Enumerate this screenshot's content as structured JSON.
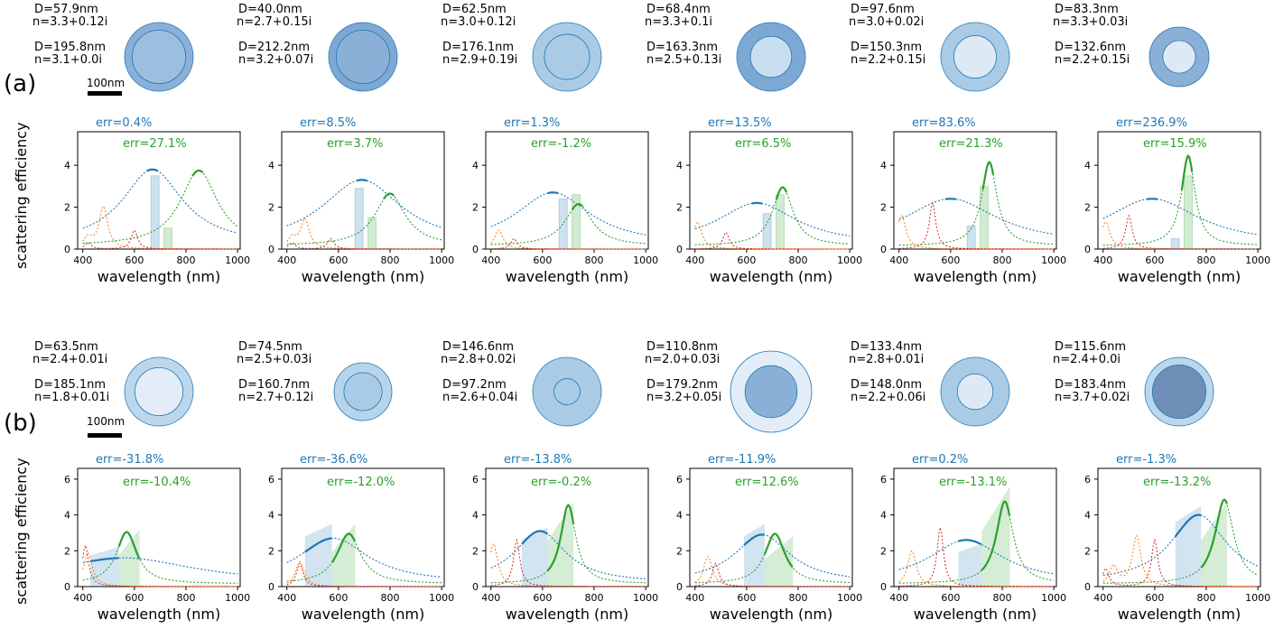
{
  "scale_bar_label": "100nm",
  "ylabel": "scattering efficiency",
  "xlabel": "wavelength (nm)",
  "x_ticks": [
    "400",
    "600",
    "800",
    "1000"
  ],
  "y_ticks": [
    "0",
    "2",
    "4",
    "6"
  ],
  "colors": {
    "blue": "#1f77b4",
    "green": "#2ca02c",
    "orange": "#ff7f0e",
    "red": "#d62728",
    "core_fill": "#9dbfdf",
    "shell_fill": "#bcd6ec"
  },
  "rows": [
    {
      "label": "(a)",
      "particles": [
        {
          "shell_d": "D=57.9nm",
          "shell_n": "n=3.3+0.12i",
          "core_d": "D=195.8nm",
          "core_n": "n=3.1+0.0i",
          "err_blue": "err=0.4%",
          "err_green": "err=27.1%"
        },
        {
          "shell_d": "D=40.0nm",
          "shell_n": "n=2.7+0.15i",
          "core_d": "D=212.2nm",
          "core_n": "n=3.2+0.07i",
          "err_blue": "err=8.5%",
          "err_green": "err=3.7%"
        },
        {
          "shell_d": "D=62.5nm",
          "shell_n": "n=3.0+0.12i",
          "core_d": "D=176.1nm",
          "core_n": "n=2.9+0.19i",
          "err_blue": "err=1.3%",
          "err_green": "err=-1.2%"
        },
        {
          "shell_d": "D=68.4nm",
          "shell_n": "n=3.3+0.1i",
          "core_d": "D=163.3nm",
          "core_n": "n=2.5+0.13i",
          "err_blue": "err=13.5%",
          "err_green": "err=6.5%"
        },
        {
          "shell_d": "D=97.6nm",
          "shell_n": "n=3.0+0.02i",
          "core_d": "D=150.3nm",
          "core_n": "n=2.2+0.15i",
          "err_blue": "err=83.6%",
          "err_green": "err=21.3%"
        },
        {
          "shell_d": "D=83.3nm",
          "shell_n": "n=3.3+0.03i",
          "core_d": "D=132.6nm",
          "core_n": "n=2.2+0.15i",
          "err_blue": "err=236.9%",
          "err_green": "err=15.9%"
        }
      ]
    },
    {
      "label": "(b)",
      "particles": [
        {
          "shell_d": "D=63.5nm",
          "shell_n": "n=2.4+0.01i",
          "core_d": "D=185.1nm",
          "core_n": "n=1.8+0.01i",
          "err_blue": "err=-31.8%",
          "err_green": "err=-10.4%"
        },
        {
          "shell_d": "D=74.5nm",
          "shell_n": "n=2.5+0.03i",
          "core_d": "D=160.7nm",
          "core_n": "n=2.7+0.12i",
          "err_blue": "err=-36.6%",
          "err_green": "err=-12.0%"
        },
        {
          "shell_d": "D=146.6nm",
          "shell_n": "n=2.8+0.02i",
          "core_d": "D=97.2nm",
          "core_n": "n=2.6+0.04i",
          "err_blue": "err=-13.8%",
          "err_green": "err=-0.2%"
        },
        {
          "shell_d": "D=110.8nm",
          "shell_n": "n=2.0+0.03i",
          "core_d": "D=179.2nm",
          "core_n": "n=3.2+0.05i",
          "err_blue": "err=-11.9%",
          "err_green": "err=12.6%"
        },
        {
          "shell_d": "D=133.4nm",
          "shell_n": "n=2.8+0.01i",
          "core_d": "D=148.0nm",
          "core_n": "n=2.2+0.06i",
          "err_blue": "err=0.2%",
          "err_green": "err=-13.1%"
        },
        {
          "shell_d": "D=115.6nm",
          "shell_n": "n=2.4+0.0i",
          "core_d": "D=183.4nm",
          "core_n": "n=3.7+0.02i",
          "err_blue": "err=-1.3%",
          "err_green": "err=-13.2%"
        }
      ]
    }
  ],
  "chart_data": [
    {
      "type": "line",
      "panel": "a1",
      "xlim": [
        380,
        1010
      ],
      "ylim": [
        0,
        5.6
      ],
      "peak_blue": {
        "x": 670,
        "y": 3.6,
        "w": 130
      },
      "peak_green": {
        "x": 850,
        "y": 3.6,
        "w": 110
      },
      "bar_blue": {
        "x": 680,
        "y": 3.5
      },
      "bar_green": {
        "x": 730,
        "y": 1.0
      },
      "orange_peaks": [
        [
          480,
          2.0
        ],
        [
          420,
          0.5
        ]
      ],
      "red_peaks": [
        [
          600,
          0.9
        ],
        [
          420,
          0.3
        ]
      ]
    },
    {
      "type": "line",
      "panel": "a2",
      "xlim": [
        380,
        1010
      ],
      "ylim": [
        0,
        5.6
      ],
      "peak_blue": {
        "x": 690,
        "y": 3.1,
        "w": 170
      },
      "peak_green": {
        "x": 800,
        "y": 2.5,
        "w": 90
      },
      "bar_blue": {
        "x": 680,
        "y": 2.9
      },
      "bar_green": {
        "x": 730,
        "y": 1.5
      },
      "orange_peaks": [
        [
          470,
          1.4
        ],
        [
          420,
          0.5
        ]
      ],
      "red_peaks": [
        [
          570,
          0.5
        ],
        [
          420,
          0.3
        ]
      ]
    },
    {
      "type": "line",
      "panel": "a3",
      "xlim": [
        380,
        1010
      ],
      "ylim": [
        0,
        5.6
      ],
      "peak_blue": {
        "x": 640,
        "y": 2.5,
        "w": 160
      },
      "peak_green": {
        "x": 740,
        "y": 2.0,
        "w": 80
      },
      "bar_blue": {
        "x": 680,
        "y": 2.4
      },
      "bar_green": {
        "x": 730,
        "y": 2.6
      },
      "orange_peaks": [
        [
          430,
          0.9
        ]
      ],
      "red_peaks": [
        [
          490,
          0.5
        ]
      ]
    },
    {
      "type": "line",
      "panel": "a4",
      "xlim": [
        380,
        1010
      ],
      "ylim": [
        0,
        5.6
      ],
      "peak_blue": {
        "x": 640,
        "y": 2.0,
        "w": 170
      },
      "peak_green": {
        "x": 740,
        "y": 2.8,
        "w": 60
      },
      "bar_blue": {
        "x": 680,
        "y": 1.7
      },
      "bar_green": {
        "x": 730,
        "y": 2.6
      },
      "orange_peaks": [
        [
          410,
          1.3
        ]
      ],
      "red_peaks": [
        [
          520,
          0.8
        ]
      ]
    },
    {
      "type": "line",
      "panel": "a5",
      "xlim": [
        380,
        1010
      ],
      "ylim": [
        0,
        5.6
      ],
      "peak_blue": {
        "x": 600,
        "y": 2.2,
        "w": 200
      },
      "peak_green": {
        "x": 750,
        "y": 4.0,
        "w": 45
      },
      "bar_blue": {
        "x": 680,
        "y": 1.1
      },
      "bar_green": {
        "x": 730,
        "y": 3.0
      },
      "orange_peaks": [
        [
          410,
          1.6
        ]
      ],
      "red_peaks": [
        [
          530,
          2.2
        ]
      ]
    },
    {
      "type": "line",
      "panel": "a6",
      "xlim": [
        380,
        1010
      ],
      "ylim": [
        0,
        5.6
      ],
      "peak_blue": {
        "x": 590,
        "y": 2.2,
        "w": 200
      },
      "peak_green": {
        "x": 730,
        "y": 4.3,
        "w": 40
      },
      "bar_blue": {
        "x": 680,
        "y": 0.5
      },
      "bar_green": {
        "x": 730,
        "y": 3.5
      },
      "orange_peaks": [
        [
          410,
          1.3
        ]
      ],
      "red_peaks": [
        [
          500,
          1.6
        ]
      ]
    },
    {
      "type": "line",
      "panel": "b1",
      "xlim": [
        380,
        1010
      ],
      "ylim": [
        0,
        6.6
      ],
      "peak_blue": {
        "x": 560,
        "y": 1.4,
        "w": 300
      },
      "peak_green": {
        "x": 570,
        "y": 2.9,
        "w": 60
      },
      "band_blue": [
        430,
        540,
        2.2
      ],
      "band_green": [
        540,
        620,
        3.2
      ],
      "orange_peaks": [
        [
          420,
          1.9
        ]
      ],
      "red_peaks": [
        [
          410,
          2.3
        ]
      ]
    },
    {
      "type": "line",
      "panel": "b2",
      "xlim": [
        380,
        1010
      ],
      "ylim": [
        0,
        6.6
      ],
      "peak_blue": {
        "x": 580,
        "y": 2.5,
        "w": 150
      },
      "peak_green": {
        "x": 640,
        "y": 2.8,
        "w": 70
      },
      "band_blue": [
        470,
        575,
        3.5
      ],
      "band_green": [
        575,
        665,
        3.5
      ],
      "orange_peaks": [
        [
          450,
          1.4
        ]
      ],
      "red_peaks": [
        [
          450,
          1.3
        ]
      ]
    },
    {
      "type": "line",
      "panel": "b3",
      "xlim": [
        380,
        1010
      ],
      "ylim": [
        0,
        6.6
      ],
      "peak_blue": {
        "x": 590,
        "y": 2.9,
        "w": 110
      },
      "peak_green": {
        "x": 700,
        "y": 4.4,
        "w": 45
      },
      "band_blue": [
        520,
        620,
        3.3
      ],
      "band_green": [
        620,
        720,
        4.7
      ],
      "orange_peaks": [
        [
          410,
          2.4
        ]
      ],
      "red_peaks": [
        [
          500,
          2.6
        ]
      ]
    },
    {
      "type": "line",
      "panel": "b4",
      "xlim": [
        380,
        1010
      ],
      "ylim": [
        0,
        6.6
      ],
      "peak_blue": {
        "x": 660,
        "y": 2.7,
        "w": 120
      },
      "peak_green": {
        "x": 710,
        "y": 2.8,
        "w": 60
      },
      "band_blue": [
        590,
        670,
        3.5
      ],
      "band_green": [
        670,
        780,
        2.8
      ],
      "orange_peaks": [
        [
          450,
          1.7
        ]
      ],
      "red_peaks": [
        [
          480,
          1.3
        ]
      ]
    },
    {
      "type": "line",
      "panel": "b5",
      "xlim": [
        380,
        1010
      ],
      "ylim": [
        0,
        6.6
      ],
      "peak_blue": {
        "x": 660,
        "y": 2.4,
        "w": 160
      },
      "peak_green": {
        "x": 810,
        "y": 4.6,
        "w": 50
      },
      "band_blue": [
        630,
        720,
        2.4
      ],
      "band_green": [
        720,
        830,
        5.6
      ],
      "orange_peaks": [
        [
          450,
          2.0
        ]
      ],
      "red_peaks": [
        [
          560,
          3.3
        ]
      ]
    },
    {
      "type": "line",
      "panel": "b6",
      "xlim": [
        380,
        1010
      ],
      "ylim": [
        0,
        6.6
      ],
      "peak_blue": {
        "x": 770,
        "y": 3.8,
        "w": 120
      },
      "peak_green": {
        "x": 870,
        "y": 4.7,
        "w": 55
      },
      "band_blue": [
        680,
        780,
        4.5
      ],
      "band_green": [
        780,
        880,
        4.7
      ],
      "orange_peaks": [
        [
          530,
          2.8
        ],
        [
          440,
          1.1
        ]
      ],
      "red_peaks": [
        [
          600,
          2.6
        ],
        [
          410,
          1.0
        ]
      ]
    }
  ]
}
